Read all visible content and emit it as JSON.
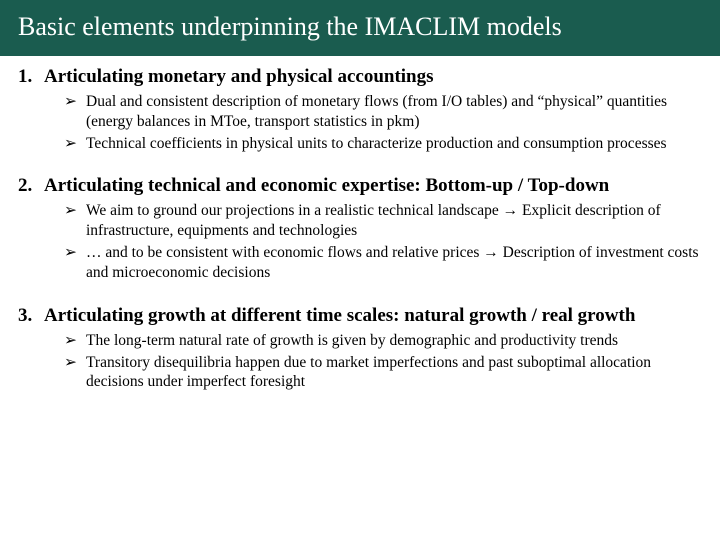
{
  "colors": {
    "title_bg": "#1a5c4f",
    "title_fg": "#ffffff",
    "body_bg": "#ffffff",
    "text": "#000000"
  },
  "typography": {
    "family": "Times New Roman",
    "title_size_pt": 26,
    "heading_size_pt": 19,
    "body_size_pt": 15.5
  },
  "title": "Basic elements underpinning the IMACLIM models",
  "bullet_marker": "➢",
  "arrow_inline": "→",
  "sections": [
    {
      "num": "1.",
      "title": "Articulating monetary and physical accountings",
      "bullets": [
        "Dual and consistent description of monetary flows (from I/O tables) and “physical” quantities (energy balances in MToe, transport statistics in pkm)",
        "Technical coefficients in physical units to characterize production and consumption processes"
      ]
    },
    {
      "num": "2.",
      "title": "Articulating technical and economic expertise: Bottom-up / Top-down",
      "bullets": [
        "We aim to ground our projections in a realistic technical landscape → Explicit description of infrastructure, equipments and technologies",
        "… and to be consistent with economic flows and relative prices → Description of investment costs and microeconomic decisions"
      ]
    },
    {
      "num": "3.",
      "title": "Articulating growth at different time scales: natural growth / real growth",
      "bullets": [
        "The long-term natural rate of growth is given by demographic and productivity trends",
        "Transitory disequilibria happen due to market imperfections and past suboptimal allocation decisions under imperfect foresight"
      ]
    }
  ]
}
